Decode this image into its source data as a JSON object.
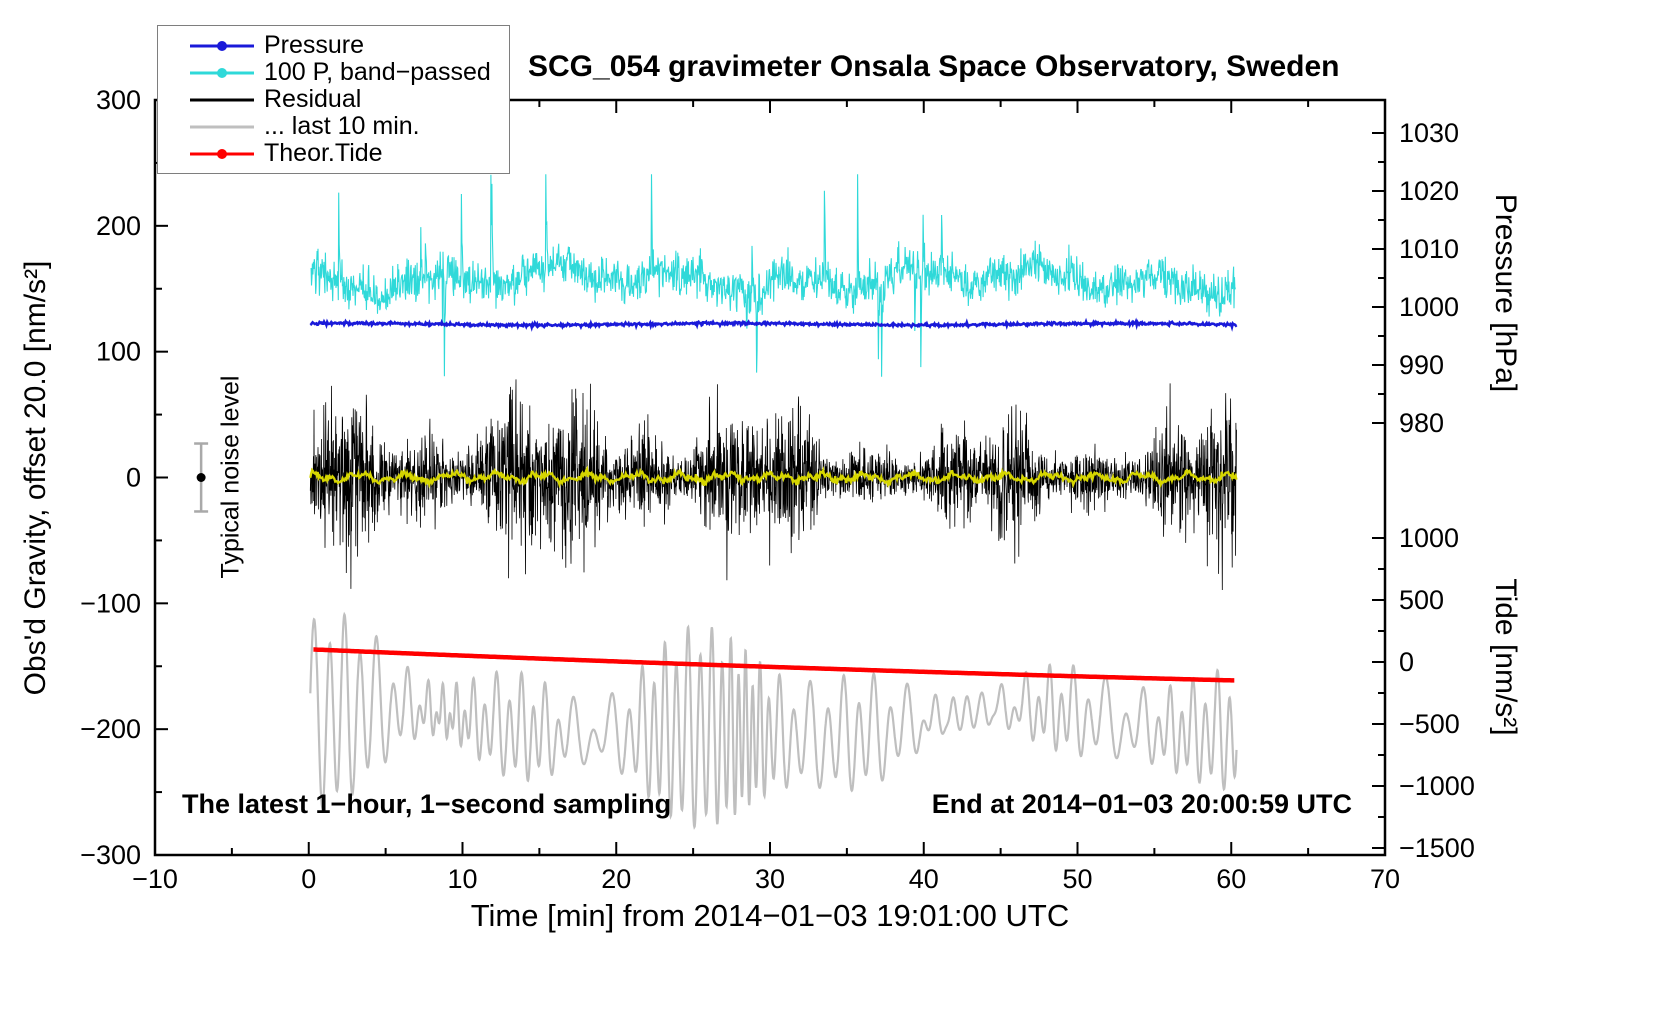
{
  "title": "SCG_054 gravimeter Onsala Space Observatory, Sweden",
  "annotations": {
    "sampling": "The latest 1−hour, 1−second sampling",
    "end_time": "End at 2014−01−03 20:00:59 UTC",
    "noise_label": "Typical noise level"
  },
  "legend": {
    "items": [
      {
        "label": "Pressure",
        "color": "#1a1ad9",
        "marker": "dot-line"
      },
      {
        "label": "100 P, band−passed",
        "color": "#2fd9d9",
        "marker": "dot-line"
      },
      {
        "label": "Residual",
        "color": "#000000",
        "marker": "line"
      },
      {
        "label": "... last 10 min.",
        "color": "#bfbfbf",
        "marker": "line"
      },
      {
        "label": "Theor.Tide",
        "color": "#ff0000",
        "marker": "dot-line"
      }
    ]
  },
  "chart_data": {
    "type": "line",
    "seed": 42,
    "x_axis": {
      "label": "Time [min] from 2014−01−03 19:01:00 UTC",
      "min": -10,
      "max": 70,
      "major_ticks": [
        -10,
        0,
        10,
        20,
        30,
        40,
        50,
        60,
        70
      ],
      "minor_tick_step": 5
    },
    "y_left": {
      "label": "Obs'd Gravity, offset 20.0 [nm/s²]",
      "min": -300,
      "max": 300,
      "major_ticks": [
        300,
        200,
        100,
        0,
        -100,
        -200,
        -300
      ],
      "minor_tick_step": 50
    },
    "y_right_pressure": {
      "label": "Pressure [hPa]",
      "major_ticks": [
        1030,
        1020,
        1010,
        1000,
        990,
        980
      ],
      "minor_ticks": [
        1025,
        1015,
        1005,
        995,
        985
      ]
    },
    "y_right_tide": {
      "label": "Tide [nm/s²]",
      "major_ticks": [
        1000,
        500,
        0,
        -500,
        -1000,
        -1500
      ],
      "minor_ticks": [
        750,
        250,
        -250,
        -750,
        -1250
      ]
    },
    "noise_marker": {
      "x_min": -7,
      "value": 0,
      "error": 27
    },
    "series": [
      {
        "name": "Pressure",
        "color": "#1a1ad9",
        "axis": "left",
        "level": 121.8,
        "approx_pressure_hPa": 997,
        "noise": 0.55,
        "t_start": 0.1,
        "t_end": 60.35
      },
      {
        "name": "100 P, band−passed",
        "color": "#2fd9d9",
        "axis": "left",
        "mean": 157,
        "typical_range": [
          130,
          185
        ],
        "spike_range": [
          80,
          241
        ],
        "t_start": 0.15,
        "t_end": 60.3
      },
      {
        "name": "Residual",
        "color": "#000000",
        "axis": "left",
        "mean": 0,
        "typical_range": [
          -60,
          60
        ],
        "extreme_range": [
          -106,
          106
        ],
        "t_start": 0.1,
        "t_end": 60.35
      },
      {
        "name": "Residual smoothed (unlabeled)",
        "color": "#d6d600",
        "axis": "left",
        "mean": 0,
        "typical_range": [
          -5,
          5
        ],
        "t_start": 0.1,
        "t_end": 60.35
      },
      {
        "name": "... last 10 min.",
        "color": "#bfbfbf",
        "axis": "left",
        "mean": -200,
        "typical_range": [
          -297,
          -110
        ],
        "t_start": 0.1,
        "t_end": 60.35
      },
      {
        "name": "Theor.Tide",
        "color": "#ff0000",
        "axis": "left",
        "start_value": -136.5,
        "end_value": -161,
        "tide_axis_start": 100,
        "tide_axis_end": -150,
        "t_start": 0.3,
        "t_end": 60.3
      }
    ]
  }
}
